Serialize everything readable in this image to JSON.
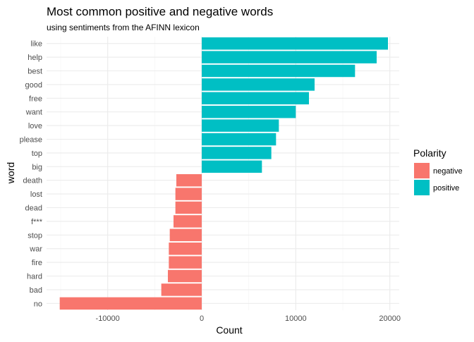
{
  "chart_data": {
    "type": "bar",
    "orientation": "horizontal",
    "title": "Most common positive and negative words",
    "subtitle": "using sentiments from the AFINN lexicon",
    "xlabel": "Count",
    "ylabel": "word",
    "xlim": [
      -16500,
      21000
    ],
    "x_ticks": [
      -10000,
      0,
      10000,
      20000
    ],
    "x_tick_labels": [
      "-10000",
      "0",
      "10000",
      "20000"
    ],
    "grid": true,
    "legend": {
      "title": "Polarity",
      "placement": "right",
      "entries": [
        {
          "label": "negative",
          "color": "#F8766D"
        },
        {
          "label": "positive",
          "color": "#00BFC4"
        }
      ]
    },
    "bars": [
      {
        "word": "like",
        "value": 19800,
        "polarity": "positive"
      },
      {
        "word": "help",
        "value": 18600,
        "polarity": "positive"
      },
      {
        "word": "best",
        "value": 16300,
        "polarity": "positive"
      },
      {
        "word": "good",
        "value": 12000,
        "polarity": "positive"
      },
      {
        "word": "free",
        "value": 11400,
        "polarity": "positive"
      },
      {
        "word": "want",
        "value": 10000,
        "polarity": "positive"
      },
      {
        "word": "love",
        "value": 8200,
        "polarity": "positive"
      },
      {
        "word": "please",
        "value": 7900,
        "polarity": "positive"
      },
      {
        "word": "top",
        "value": 7400,
        "polarity": "positive"
      },
      {
        "word": "big",
        "value": 6400,
        "polarity": "positive"
      },
      {
        "word": "death",
        "value": -2700,
        "polarity": "negative"
      },
      {
        "word": "lost",
        "value": -2800,
        "polarity": "negative"
      },
      {
        "word": "dead",
        "value": -2800,
        "polarity": "negative"
      },
      {
        "word": "f***",
        "value": -3000,
        "polarity": "negative"
      },
      {
        "word": "stop",
        "value": -3400,
        "polarity": "negative"
      },
      {
        "word": "war",
        "value": -3500,
        "polarity": "negative"
      },
      {
        "word": "fire",
        "value": -3500,
        "polarity": "negative"
      },
      {
        "word": "hard",
        "value": -3600,
        "polarity": "negative"
      },
      {
        "word": "bad",
        "value": -4300,
        "polarity": "negative"
      },
      {
        "word": "no",
        "value": -15100,
        "polarity": "negative"
      }
    ],
    "colors": {
      "negative": "#F8766D",
      "positive": "#00BFC4",
      "grid_major": "#EBEBEB",
      "grid_minor": "#F4F4F4",
      "text": "#000000",
      "tick_text": "#4D4D4D"
    }
  }
}
